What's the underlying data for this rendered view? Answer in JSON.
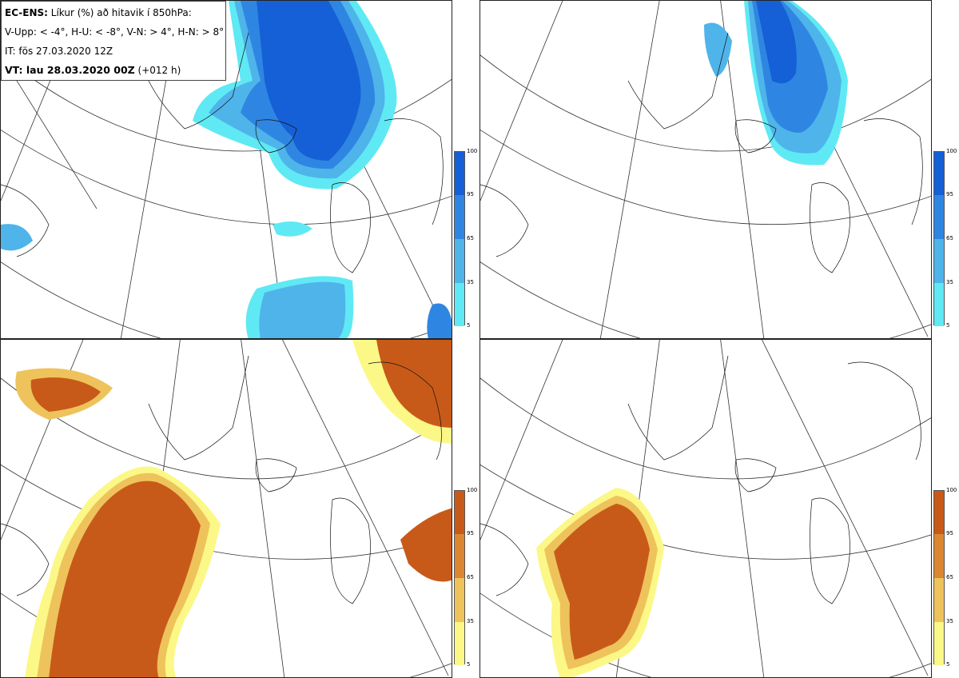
{
  "info": {
    "line1_lead": "EC-ENS:",
    "line1_rest": " Líkur (%) að hitavik í 850hPa:",
    "line2": "V-Upp: < -4°, H-U: < -8°, V-N: > 4°, H-N: > 8°",
    "line3": "IT: fös 27.03.2020 12Z",
    "line4_lead": "VT: lau 28.03.2020 00Z",
    "line4_rest": " (+012 h)"
  },
  "legend_cold": {
    "ticks": [
      "100",
      "95",
      "65",
      "35",
      "5"
    ],
    "colors": [
      "#1560d6",
      "#2f86e2",
      "#4fb4ea",
      "#5fe9f4"
    ]
  },
  "legend_warm": {
    "ticks": [
      "100",
      "95",
      "65",
      "35",
      "5"
    ],
    "colors": [
      "#c85a19",
      "#db8732",
      "#eec35c",
      "#fbf887"
    ]
  },
  "panels": [
    {
      "name": "V-Upp",
      "scale": "cold"
    },
    {
      "name": "H-U",
      "scale": "cold"
    },
    {
      "name": "V-N",
      "scale": "warm"
    },
    {
      "name": "H-N",
      "scale": "warm"
    }
  ]
}
